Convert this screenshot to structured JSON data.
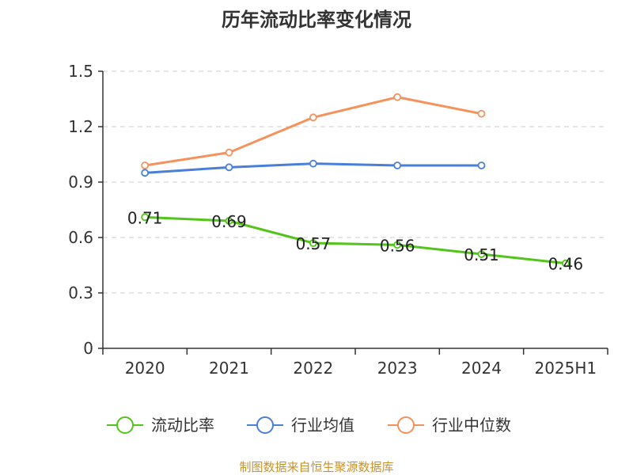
{
  "chart_data": {
    "type": "line",
    "title": "历年流动比率变化情况",
    "categories": [
      "2020",
      "2021",
      "2022",
      "2023",
      "2024",
      "2025H1"
    ],
    "y_ticks": [
      "0",
      "0.3",
      "0.6",
      "0.9",
      "1.2",
      "1.5"
    ],
    "ylim": [
      0,
      1.5
    ],
    "grid": true,
    "legend_position": "bottom",
    "series": [
      {
        "name": "流动比率",
        "color": "#52c41a",
        "values": [
          0.71,
          0.69,
          0.57,
          0.56,
          0.51,
          0.46
        ],
        "labels": [
          "0.71",
          "0.69",
          "0.57",
          "0.56",
          "0.51",
          "0.46"
        ]
      },
      {
        "name": "行业均值",
        "color": "#4a7fd9",
        "values": [
          0.95,
          0.98,
          1.0,
          0.99,
          0.99,
          null
        ]
      },
      {
        "name": "行业中位数",
        "color": "#f5925b",
        "values": [
          0.99,
          1.06,
          1.25,
          1.36,
          1.27,
          null
        ]
      }
    ]
  },
  "source_text": "制图数据来自恒生聚源数据库"
}
